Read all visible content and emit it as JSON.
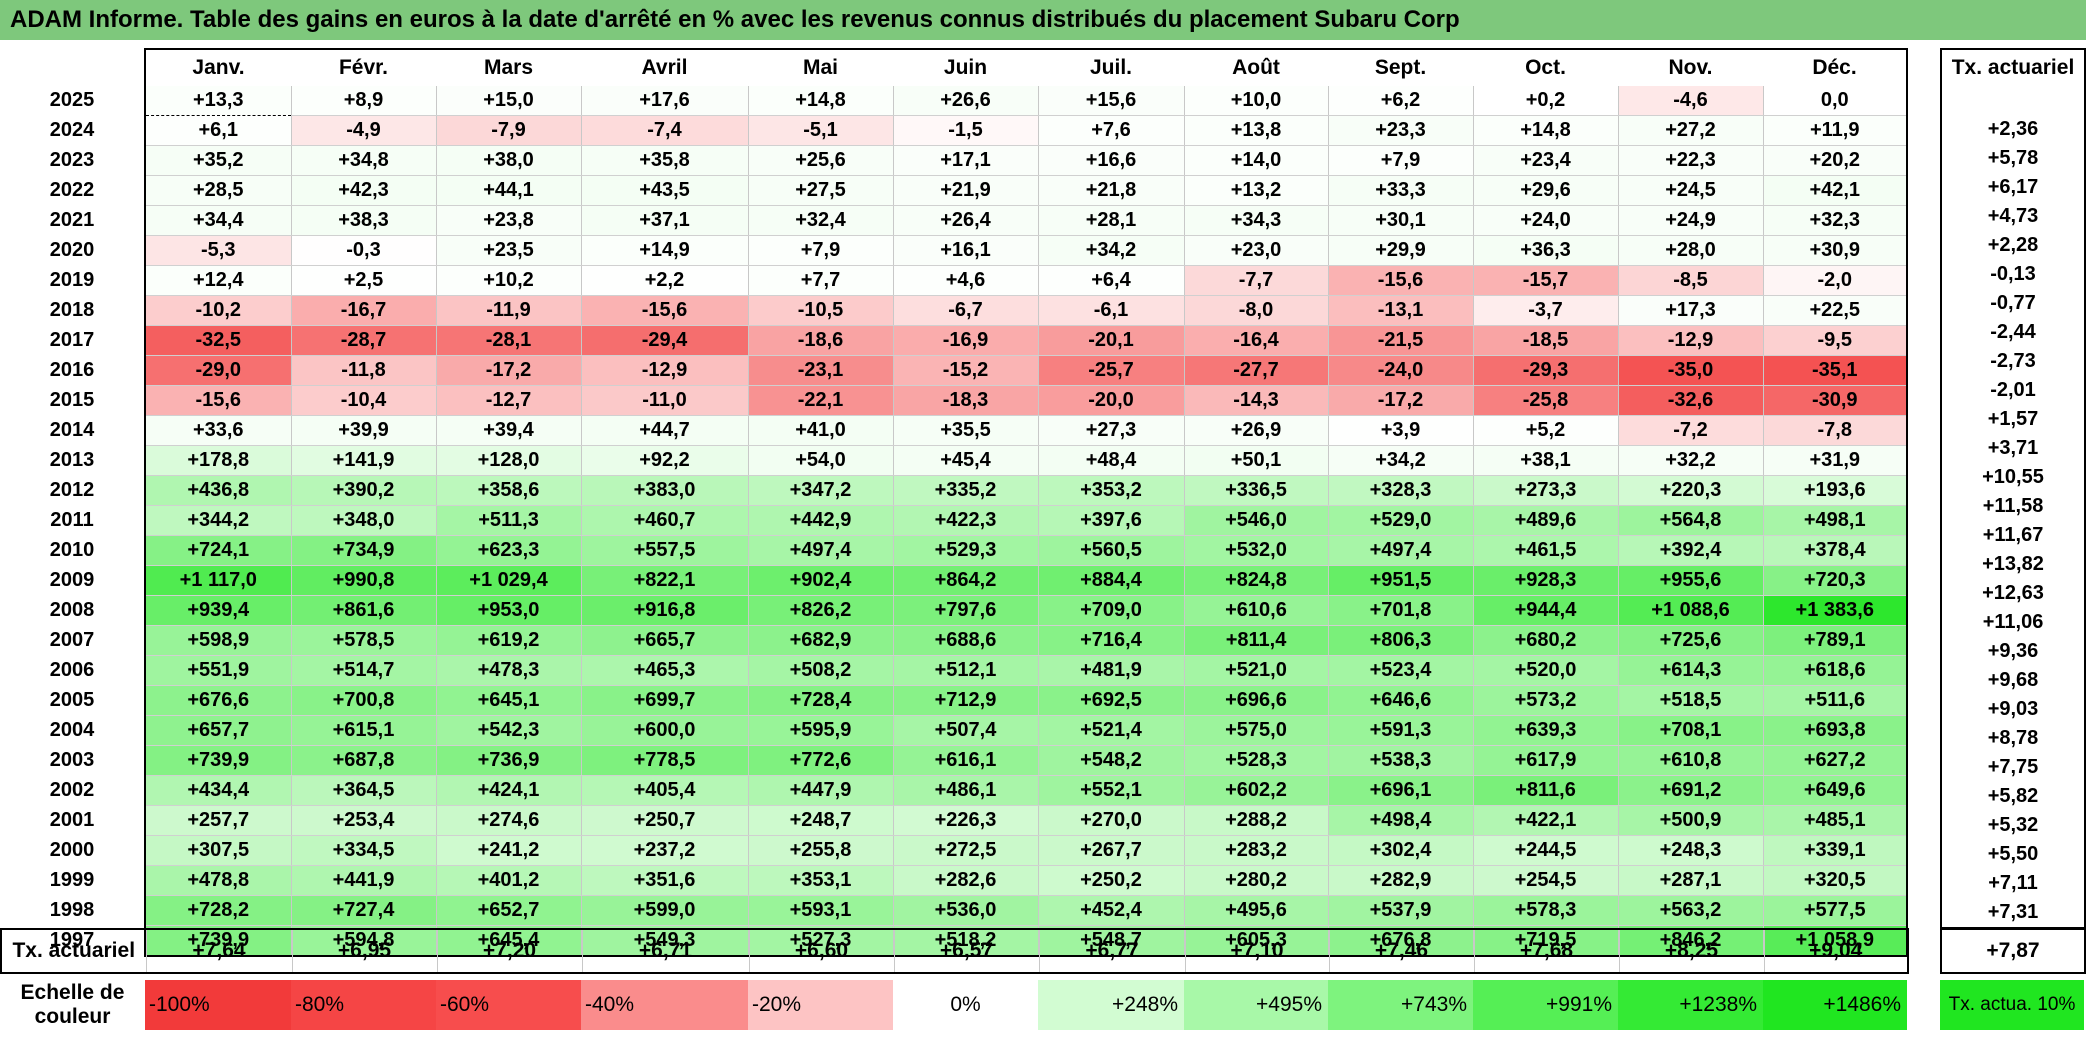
{
  "title": "ADAM Informe. Table des gains en euros à la date d'arrêté en % avec les revenus connus distribués du placement Subaru Corp",
  "months": [
    "Janv.",
    "Févr.",
    "Mars",
    "Avril",
    "Mai",
    "Juin",
    "Juil.",
    "Août",
    "Sept.",
    "Oct.",
    "Nov.",
    "Déc."
  ],
  "rate_header": "Tx. actuariel",
  "rows": [
    {
      "year": "2025",
      "values": [
        "+13,3",
        "+8,9",
        "+15,0",
        "+17,6",
        "+14,8",
        "+26,6",
        "+15,6",
        "+10,0",
        "+6,2",
        "+0,2",
        "-4,6",
        "0,0"
      ],
      "rate": ""
    },
    {
      "year": "2024",
      "values": [
        "+6,1",
        "-4,9",
        "-7,9",
        "-7,4",
        "-5,1",
        "-1,5",
        "+7,6",
        "+13,8",
        "+23,3",
        "+14,8",
        "+27,2",
        "+11,9"
      ],
      "rate": "+2,36"
    },
    {
      "year": "2023",
      "values": [
        "+35,2",
        "+34,8",
        "+38,0",
        "+35,8",
        "+25,6",
        "+17,1",
        "+16,6",
        "+14,0",
        "+7,9",
        "+23,4",
        "+22,3",
        "+20,2"
      ],
      "rate": "+5,78"
    },
    {
      "year": "2022",
      "values": [
        "+28,5",
        "+42,3",
        "+44,1",
        "+43,5",
        "+27,5",
        "+21,9",
        "+21,8",
        "+13,2",
        "+33,3",
        "+29,6",
        "+24,5",
        "+42,1"
      ],
      "rate": "+6,17"
    },
    {
      "year": "2021",
      "values": [
        "+34,4",
        "+38,3",
        "+23,8",
        "+37,1",
        "+32,4",
        "+26,4",
        "+28,1",
        "+34,3",
        "+30,1",
        "+24,0",
        "+24,9",
        "+32,3"
      ],
      "rate": "+4,73"
    },
    {
      "year": "2020",
      "values": [
        "-5,3",
        "-0,3",
        "+23,5",
        "+14,9",
        "+7,9",
        "+16,1",
        "+34,2",
        "+23,0",
        "+29,9",
        "+36,3",
        "+28,0",
        "+30,9"
      ],
      "rate": "+2,28"
    },
    {
      "year": "2019",
      "values": [
        "+12,4",
        "+2,5",
        "+10,2",
        "+2,2",
        "+7,7",
        "+4,6",
        "+6,4",
        "-7,7",
        "-15,6",
        "-15,7",
        "-8,5",
        "-2,0"
      ],
      "rate": "-0,13"
    },
    {
      "year": "2018",
      "values": [
        "-10,2",
        "-16,7",
        "-11,9",
        "-15,6",
        "-10,5",
        "-6,7",
        "-6,1",
        "-8,0",
        "-13,1",
        "-3,7",
        "+17,3",
        "+22,5"
      ],
      "rate": "-0,77"
    },
    {
      "year": "2017",
      "values": [
        "-32,5",
        "-28,7",
        "-28,1",
        "-29,4",
        "-18,6",
        "-16,9",
        "-20,1",
        "-16,4",
        "-21,5",
        "-18,5",
        "-12,9",
        "-9,5"
      ],
      "rate": "-2,44"
    },
    {
      "year": "2016",
      "values": [
        "-29,0",
        "-11,8",
        "-17,2",
        "-12,9",
        "-23,1",
        "-15,2",
        "-25,7",
        "-27,7",
        "-24,0",
        "-29,3",
        "-35,0",
        "-35,1"
      ],
      "rate": "-2,73"
    },
    {
      "year": "2015",
      "values": [
        "-15,6",
        "-10,4",
        "-12,7",
        "-11,0",
        "-22,1",
        "-18,3",
        "-20,0",
        "-14,3",
        "-17,2",
        "-25,8",
        "-32,6",
        "-30,9"
      ],
      "rate": "-2,01"
    },
    {
      "year": "2014",
      "values": [
        "+33,6",
        "+39,9",
        "+39,4",
        "+44,7",
        "+41,0",
        "+35,5",
        "+27,3",
        "+26,9",
        "+3,9",
        "+5,2",
        "-7,2",
        "-7,8"
      ],
      "rate": "+1,57"
    },
    {
      "year": "2013",
      "values": [
        "+178,8",
        "+141,9",
        "+128,0",
        "+92,2",
        "+54,0",
        "+45,4",
        "+48,4",
        "+50,1",
        "+34,2",
        "+38,1",
        "+32,2",
        "+31,9"
      ],
      "rate": "+3,71"
    },
    {
      "year": "2012",
      "values": [
        "+436,8",
        "+390,2",
        "+358,6",
        "+383,0",
        "+347,2",
        "+335,2",
        "+353,2",
        "+336,5",
        "+328,3",
        "+273,3",
        "+220,3",
        "+193,6"
      ],
      "rate": "+10,55"
    },
    {
      "year": "2011",
      "values": [
        "+344,2",
        "+348,0",
        "+511,3",
        "+460,7",
        "+442,9",
        "+422,3",
        "+397,6",
        "+546,0",
        "+529,0",
        "+489,6",
        "+564,8",
        "+498,1"
      ],
      "rate": "+11,58"
    },
    {
      "year": "2010",
      "values": [
        "+724,1",
        "+734,9",
        "+623,3",
        "+557,5",
        "+497,4",
        "+529,3",
        "+560,5",
        "+532,0",
        "+497,4",
        "+461,5",
        "+392,4",
        "+378,4"
      ],
      "rate": "+11,67"
    },
    {
      "year": "2009",
      "values": [
        "+1 117,0",
        "+990,8",
        "+1 029,4",
        "+822,1",
        "+902,4",
        "+864,2",
        "+884,4",
        "+824,8",
        "+951,5",
        "+928,3",
        "+955,6",
        "+720,3"
      ],
      "rate": "+13,82"
    },
    {
      "year": "2008",
      "values": [
        "+939,4",
        "+861,6",
        "+953,0",
        "+916,8",
        "+826,2",
        "+797,6",
        "+709,0",
        "+610,6",
        "+701,8",
        "+944,4",
        "+1 088,6",
        "+1 383,6"
      ],
      "rate": "+12,63"
    },
    {
      "year": "2007",
      "values": [
        "+598,9",
        "+578,5",
        "+619,2",
        "+665,7",
        "+682,9",
        "+688,6",
        "+716,4",
        "+811,4",
        "+806,3",
        "+680,2",
        "+725,6",
        "+789,1"
      ],
      "rate": "+11,06"
    },
    {
      "year": "2006",
      "values": [
        "+551,9",
        "+514,7",
        "+478,3",
        "+465,3",
        "+508,2",
        "+512,1",
        "+481,9",
        "+521,0",
        "+523,4",
        "+520,0",
        "+614,3",
        "+618,6"
      ],
      "rate": "+9,36"
    },
    {
      "year": "2005",
      "values": [
        "+676,6",
        "+700,8",
        "+645,1",
        "+699,7",
        "+728,4",
        "+712,9",
        "+692,5",
        "+696,6",
        "+646,6",
        "+573,2",
        "+518,5",
        "+511,6"
      ],
      "rate": "+9,68"
    },
    {
      "year": "2004",
      "values": [
        "+657,7",
        "+615,1",
        "+542,3",
        "+600,0",
        "+595,9",
        "+507,4",
        "+521,4",
        "+575,0",
        "+591,3",
        "+639,3",
        "+708,1",
        "+693,8"
      ],
      "rate": "+9,03"
    },
    {
      "year": "2003",
      "values": [
        "+739,9",
        "+687,8",
        "+736,9",
        "+778,5",
        "+772,6",
        "+616,1",
        "+548,2",
        "+528,3",
        "+538,3",
        "+617,9",
        "+610,8",
        "+627,2"
      ],
      "rate": "+8,78"
    },
    {
      "year": "2002",
      "values": [
        "+434,4",
        "+364,5",
        "+424,1",
        "+405,4",
        "+447,9",
        "+486,1",
        "+552,1",
        "+602,2",
        "+696,1",
        "+811,6",
        "+691,2",
        "+649,6"
      ],
      "rate": "+7,75"
    },
    {
      "year": "2001",
      "values": [
        "+257,7",
        "+253,4",
        "+274,6",
        "+250,7",
        "+248,7",
        "+226,3",
        "+270,0",
        "+288,2",
        "+498,4",
        "+422,1",
        "+500,9",
        "+485,1"
      ],
      "rate": "+5,82"
    },
    {
      "year": "2000",
      "values": [
        "+307,5",
        "+334,5",
        "+241,2",
        "+237,2",
        "+255,8",
        "+272,5",
        "+267,7",
        "+283,2",
        "+302,4",
        "+244,5",
        "+248,3",
        "+339,1"
      ],
      "rate": "+5,32"
    },
    {
      "year": "1999",
      "values": [
        "+478,8",
        "+441,9",
        "+401,2",
        "+351,6",
        "+353,1",
        "+282,6",
        "+250,2",
        "+280,2",
        "+282,9",
        "+254,5",
        "+287,1",
        "+320,5"
      ],
      "rate": "+5,50"
    },
    {
      "year": "1998",
      "values": [
        "+728,2",
        "+727,4",
        "+652,7",
        "+599,0",
        "+593,1",
        "+536,0",
        "+452,4",
        "+495,6",
        "+537,9",
        "+578,3",
        "+563,2",
        "+577,5"
      ],
      "rate": "+7,11"
    },
    {
      "year": "1997",
      "values": [
        "+739,9",
        "+594,8",
        "+645,4",
        "+549,3",
        "+527,3",
        "+518,2",
        "+548,7",
        "+605,3",
        "+676,8",
        "+719,5",
        "+846,2",
        "+1 058,9"
      ],
      "rate": "+7,31"
    }
  ],
  "footer": {
    "label": "Tx. actuariel",
    "values": [
      "+7,64",
      "+6,95",
      "+7,20",
      "+6,71",
      "+6,60",
      "+6,57",
      "+6,77",
      "+7,10",
      "+7,46",
      "+7,68",
      "+8,25",
      "+9,04"
    ],
    "overall": "+7,87"
  },
  "legend": {
    "label": "Echelle de couleur",
    "steps": [
      {
        "text": "-100%",
        "color": "#f23a3a"
      },
      {
        "text": "-80%",
        "color": "#f54545"
      },
      {
        "text": "-60%",
        "color": "#f74d4d"
      },
      {
        "text": "-40%",
        "color": "#fa8c8c"
      },
      {
        "text": "-20%",
        "color": "#fdc4c4"
      },
      {
        "text": "0%",
        "color": "#ffffff"
      },
      {
        "text": "+248%",
        "color": "#d2fcd2"
      },
      {
        "text": "+495%",
        "color": "#a8f8a8"
      },
      {
        "text": "+743%",
        "color": "#7ef37e"
      },
      {
        "text": "+991%",
        "color": "#55ef55"
      },
      {
        "text": "+1238%",
        "color": "#34ea34"
      },
      {
        "text": "+1486%",
        "color": "#20e620"
      }
    ],
    "rate_label": "Tx. actua. 10%",
    "rate_color": "#20e620"
  },
  "colors": {
    "title_bg": "#7ec87c",
    "negative_full": "#f23a3a",
    "positive_full": "#20e620",
    "neutral": "#ffffff"
  }
}
